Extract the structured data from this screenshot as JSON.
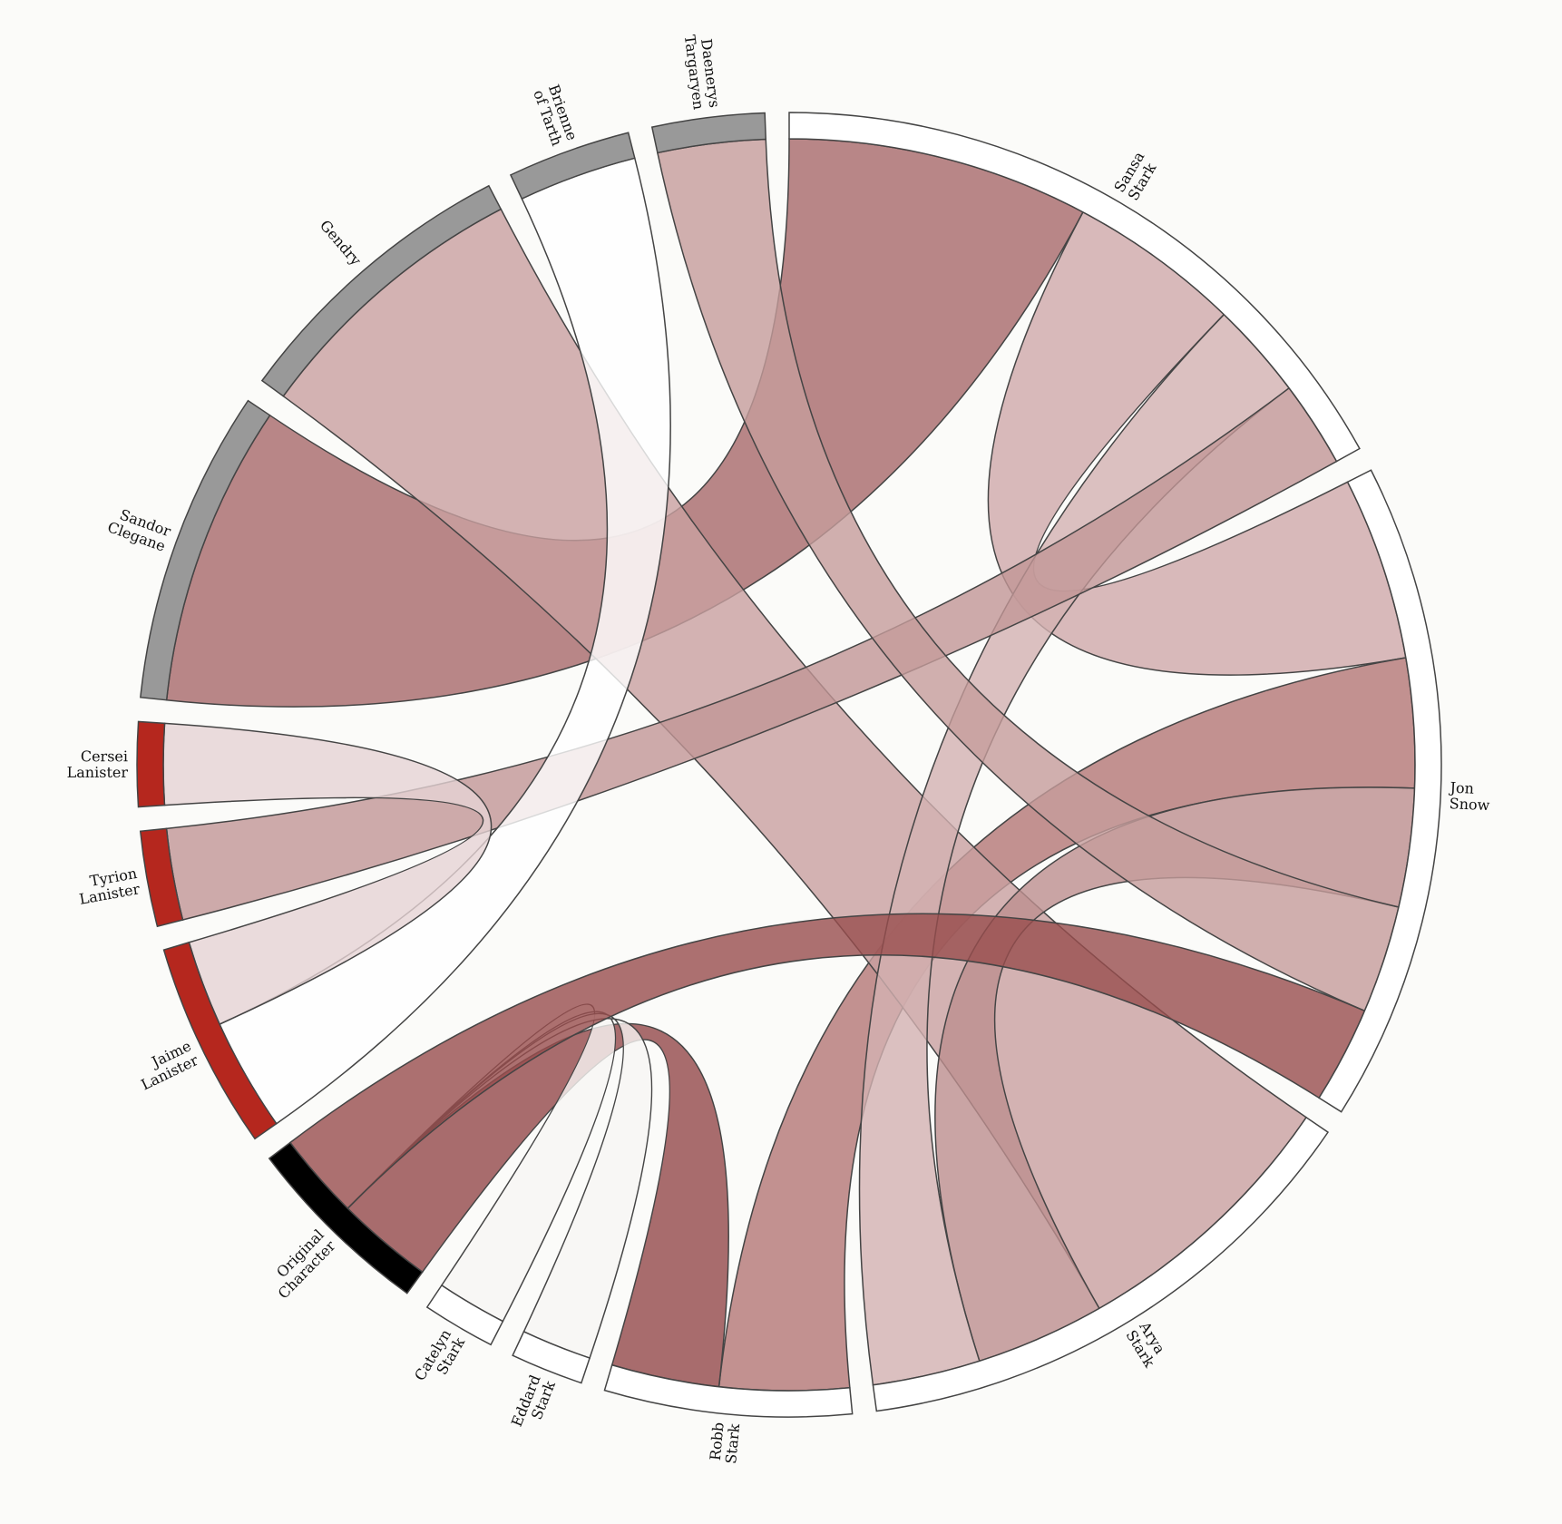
{
  "chart_data": {
    "type": "chord",
    "groups": [
      {
        "label": [
          "Sansa",
          "Stark"
        ],
        "color": "#ffffff"
      },
      {
        "label": [
          "Jon",
          "Snow"
        ],
        "color": "#ffffff"
      },
      {
        "label": [
          "Arya",
          "Stark"
        ],
        "color": "#ffffff"
      },
      {
        "label": [
          "Robb",
          "Stark"
        ],
        "color": "#ffffff"
      },
      {
        "label": [
          "Eddard",
          "Stark"
        ],
        "color": "#ffffff"
      },
      {
        "label": [
          "Catelyn",
          "Stark"
        ],
        "color": "#ffffff"
      },
      {
        "label": [
          "Original",
          "Character"
        ],
        "color": "#000000"
      },
      {
        "label": [
          "Jaime",
          "Lanister"
        ],
        "color": "#b5271e"
      },
      {
        "label": [
          "Tyrion",
          "Lanister"
        ],
        "color": "#b5271e"
      },
      {
        "label": [
          "Cersei",
          "Lanister"
        ],
        "color": "#b5271e"
      },
      {
        "label": [
          "Sandor",
          "Clegane"
        ],
        "color": "#999999"
      },
      {
        "label": [
          "Gendry"
        ],
        "color": "#999999"
      },
      {
        "label": [
          "Brienne",
          "of Tarth"
        ],
        "color": "#999999"
      },
      {
        "label": [
          "Daenerys",
          "Targaryen"
        ],
        "color": "#999999"
      }
    ],
    "ribbons": [
      {
        "source": 0,
        "target": 10,
        "source_value": 28,
        "target_value": 28,
        "color": "#a8696a"
      },
      {
        "source": 0,
        "target": 1,
        "source_value": 16,
        "target_value": 17,
        "color": "#cfa9aa"
      },
      {
        "source": 1,
        "target": 3,
        "source_value": 12,
        "target_value": 12,
        "color": "#b47776"
      },
      {
        "source": 2,
        "target": 11,
        "source_value": 26,
        "target_value": 26.5,
        "color": "#c9a0a0"
      },
      {
        "source": 1,
        "target": 2,
        "source_value": 11,
        "target_value": 12,
        "color": "#bd8f8e"
      },
      {
        "source": 0,
        "target": 2,
        "source_value": 9,
        "target_value": 10,
        "color": "#d3b1b2"
      },
      {
        "source": 0,
        "target": 8,
        "source_value": 8,
        "target_value": 8.5,
        "color": "#c29696"
      },
      {
        "source": 1,
        "target": 13,
        "source_value": 10,
        "target_value": 10,
        "color": "#c59c9b"
      },
      {
        "source": 3,
        "target": 6,
        "source_value": 10,
        "target_value": 9,
        "color": "#93494a"
      },
      {
        "source": 5,
        "target": 6,
        "source_value": 6.5,
        "target_value": 0,
        "color": "#f8f6f4"
      },
      {
        "source": 4,
        "target": 6,
        "source_value": 6.5,
        "target_value": 0,
        "color": "#f8f6f4"
      },
      {
        "source": 1,
        "target": 6,
        "source_value": 9,
        "target_value": 8,
        "color": "#984e4d"
      },
      {
        "source": 7,
        "target": 12,
        "source_value": 10.5,
        "target_value": 11,
        "color": "#ffffff"
      },
      {
        "source": 7,
        "target": 9,
        "source_value": 8,
        "target_value": 7.5,
        "color": "#e6d3d4"
      }
    ]
  }
}
